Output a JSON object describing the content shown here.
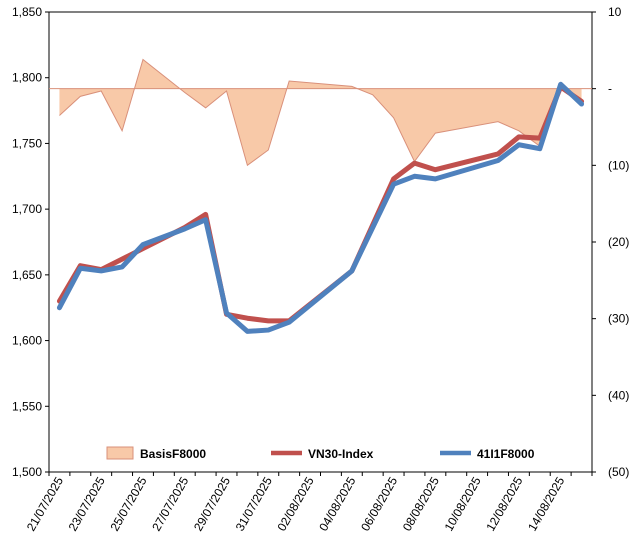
{
  "chart_data": {
    "type": "line",
    "x": [
      "21/07/2025",
      "22/07/2025",
      "23/07/2025",
      "24/07/2025",
      "25/07/2025",
      "26/07/2025",
      "27/07/2025",
      "28/07/2025",
      "29/07/2025",
      "30/07/2025",
      "31/07/2025",
      "01/08/2025",
      "02/08/2025",
      "03/08/2025",
      "04/08/2025",
      "05/08/2025",
      "06/08/2025",
      "07/08/2025",
      "08/08/2025",
      "09/08/2025",
      "10/08/2025",
      "11/08/2025",
      "12/08/2025",
      "13/08/2025",
      "14/08/2025",
      "15/08/2025"
    ],
    "x_tick_labels": [
      "21/07/2025",
      "23/07/2025",
      "25/07/2025",
      "27/07/2025",
      "29/07/2025",
      "31/07/2025",
      "02/08/2025",
      "04/08/2025",
      "06/08/2025",
      "08/08/2025",
      "10/08/2025",
      "12/08/2025",
      "14/08/2025"
    ],
    "y_left": {
      "min": 1500,
      "max": 1850,
      "ticks": [
        "1,500",
        "1,550",
        "1,600",
        "1,650",
        "1,700",
        "1,750",
        "1,800",
        "1,850"
      ]
    },
    "y_right": {
      "min": -50,
      "max": 10,
      "ticks": [
        "(50)",
        "(40)",
        "(30)",
        "(20)",
        "(10)",
        "-",
        "10"
      ]
    },
    "series": [
      {
        "name": "BasisF8000",
        "axis": "right",
        "kind": "area",
        "color": "#f8c9a8",
        "edge": "#d9907a",
        "values": [
          -3.5,
          -1,
          -0.3,
          -5.5,
          3.8,
          null,
          -0.5,
          -2.5,
          -0.3,
          -10,
          -8,
          1,
          null,
          null,
          0.3,
          -0.8,
          -3.8,
          -9.5,
          -5.8,
          null,
          null,
          -4.3,
          -5.5,
          -7.5,
          0,
          -1.5
        ]
      },
      {
        "name": "VN30-Index",
        "axis": "left",
        "kind": "line",
        "color": "#c0504d",
        "values": [
          1630,
          1657,
          1654,
          1662,
          1670,
          null,
          1686,
          1696,
          1620,
          1617,
          1615,
          1615,
          null,
          null,
          1653,
          1688,
          1723,
          1735,
          1730,
          null,
          null,
          1742,
          1755,
          1754,
          1793,
          1782
        ]
      },
      {
        "name": "41I1F8000",
        "axis": "left",
        "kind": "line",
        "color": "#4f81bd",
        "values": [
          1625,
          1655,
          1653,
          1656,
          1673,
          null,
          1685,
          1692,
          1621,
          1607,
          1608,
          1614,
          null,
          null,
          1653,
          1686,
          1719,
          1725,
          1723,
          null,
          null,
          1737,
          1749,
          1746,
          1795,
          1780
        ]
      }
    ],
    "legend": {
      "placement": "bottom-inside"
    },
    "grid": false
  }
}
